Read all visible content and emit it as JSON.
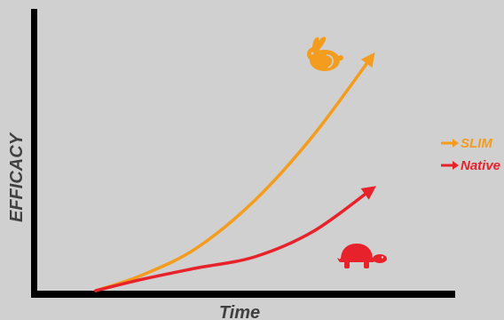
{
  "chart_data": {
    "type": "line",
    "title": "",
    "xlabel": "Time",
    "ylabel": "EFFICACY",
    "xlim": [
      0,
      10
    ],
    "ylim": [
      0,
      10
    ],
    "grid": false,
    "legend_position": "right",
    "series": [
      {
        "name": "SLIM",
        "color": "#f39c1e",
        "icon": "rabbit-icon",
        "x": [
          1.4,
          2.5,
          3.8,
          5.2,
          6.6,
          8.0
        ],
        "y": [
          0.0,
          0.55,
          1.5,
          3.2,
          5.5,
          8.3
        ]
      },
      {
        "name": "Native",
        "color": "#e8222b",
        "icon": "turtle-icon",
        "x": [
          1.4,
          2.5,
          3.8,
          5.2,
          6.6,
          8.0
        ],
        "y": [
          0.0,
          0.4,
          0.8,
          1.2,
          2.1,
          3.6
        ]
      }
    ]
  }
}
